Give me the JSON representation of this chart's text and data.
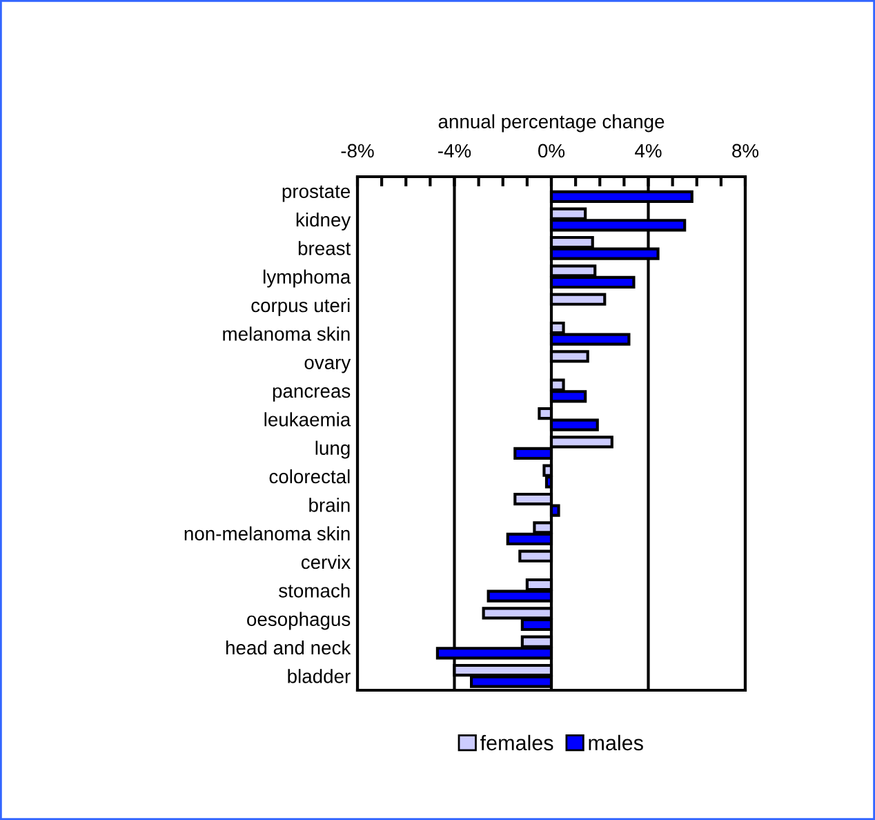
{
  "chart_data": {
    "type": "bar",
    "orientation": "horizontal",
    "xlabel": "annual percentage change",
    "categories": [
      "prostate",
      "kidney",
      "breast",
      "lymphoma",
      "corpus uteri",
      "melanoma skin",
      "ovary",
      "pancreas",
      "leukaemia",
      "lung",
      "colorectal",
      "brain",
      "non-melanoma skin",
      "cervix",
      "stomach",
      "oesophagus",
      "head and neck",
      "bladder"
    ],
    "series": [
      {
        "name": "females",
        "color": "#ccccff",
        "values": [
          null,
          1.4,
          1.7,
          1.8,
          2.2,
          0.5,
          1.5,
          0.5,
          -0.5,
          2.5,
          -0.3,
          -1.5,
          -0.7,
          -1.3,
          -1.0,
          -2.8,
          -1.2,
          -4.0
        ]
      },
      {
        "name": "males",
        "color": "#0000ff",
        "values": [
          5.8,
          5.5,
          4.4,
          3.4,
          null,
          3.2,
          null,
          1.4,
          1.9,
          -1.5,
          -0.2,
          0.3,
          -1.8,
          null,
          -2.6,
          -1.2,
          -4.7,
          -3.3
        ]
      }
    ],
    "xlim": [
      -8,
      8
    ],
    "xticks": [
      {
        "value": -8,
        "label": "-8%"
      },
      {
        "value": -7,
        "label": null
      },
      {
        "value": -6,
        "label": null
      },
      {
        "value": -5,
        "label": null
      },
      {
        "value": -4,
        "label": "-4%"
      },
      {
        "value": -3,
        "label": null
      },
      {
        "value": -2,
        "label": null
      },
      {
        "value": -1,
        "label": null
      },
      {
        "value": 0,
        "label": "0%"
      },
      {
        "value": 1,
        "label": null
      },
      {
        "value": 2,
        "label": null
      },
      {
        "value": 3,
        "label": null
      },
      {
        "value": 4,
        "label": "4%"
      },
      {
        "value": 5,
        "label": null
      },
      {
        "value": 6,
        "label": null
      },
      {
        "value": 7,
        "label": null
      },
      {
        "value": 8,
        "label": "8%"
      }
    ],
    "grid": "x",
    "legend": "bottom"
  }
}
